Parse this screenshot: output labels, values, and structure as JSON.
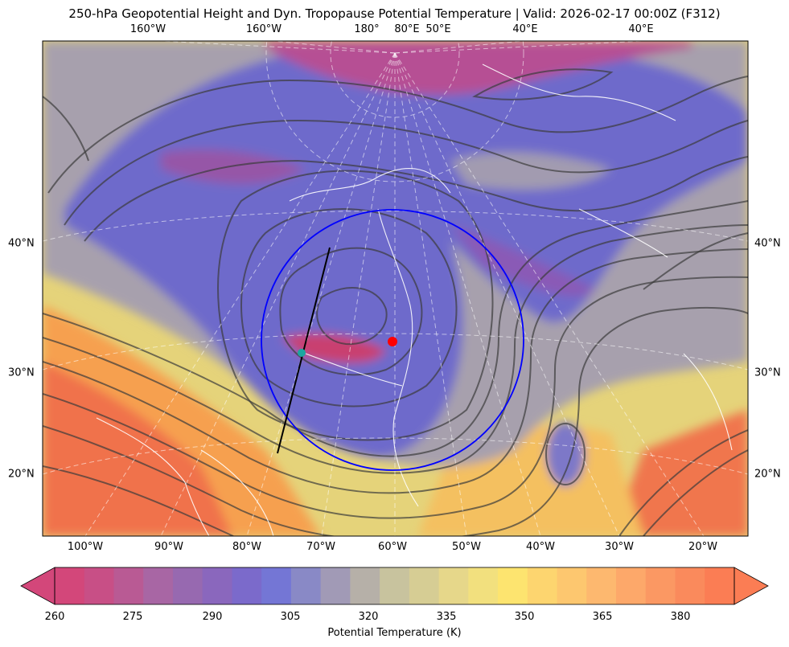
{
  "title": "250-hPa Geopotential Height and Dyn. Tropopause Potential Temperature   |  Valid: 2026-02-17 00:00Z (F312)",
  "map": {
    "top_lon_labels": [
      "160°W",
      "160°W",
      "180°",
      "80°E",
      "50°E",
      "40°E",
      "40°E"
    ],
    "bottom_lon_labels": [
      "100°W",
      "90°W",
      "80°W",
      "70°W",
      "60°W",
      "50°W",
      "40°W",
      "30°W",
      "20°W"
    ],
    "left_lat_labels": [
      "40°N",
      "30°N",
      "20°N"
    ],
    "right_lat_labels": [
      "40°N",
      "30°N",
      "20°N"
    ],
    "fill_field": "Potential Temperature (K)",
    "contour_field": "250-hPa Geopotential Height",
    "features": {
      "circle_color": "#0000ff",
      "cross_section_line_color": "#000000",
      "center_marker_color": "#ff0000",
      "cross_marker_color": "#1aa7a0"
    }
  },
  "colorbar": {
    "label": "Potential Temperature (K)",
    "ticks": [
      "260",
      "275",
      "290",
      "305",
      "320",
      "335",
      "350",
      "365",
      "380"
    ],
    "colors": [
      "#d3477a",
      "#c84f86",
      "#b95a94",
      "#a866a4",
      "#9769b0",
      "#8a67bd",
      "#7b6acb",
      "#7476d5",
      "#8989c6",
      "#a19ab6",
      "#b6b0a8",
      "#c8c39e",
      "#d6cd94",
      "#e6d78a",
      "#f2e07e",
      "#fde46f",
      "#fdd56f",
      "#fdc76f",
      "#fdb86f",
      "#fda86a",
      "#fb9863",
      "#fa8a5c",
      "#fb7d54"
    ],
    "extend_left_color": "#d3477a",
    "extend_right_color": "#fb7d54"
  }
}
